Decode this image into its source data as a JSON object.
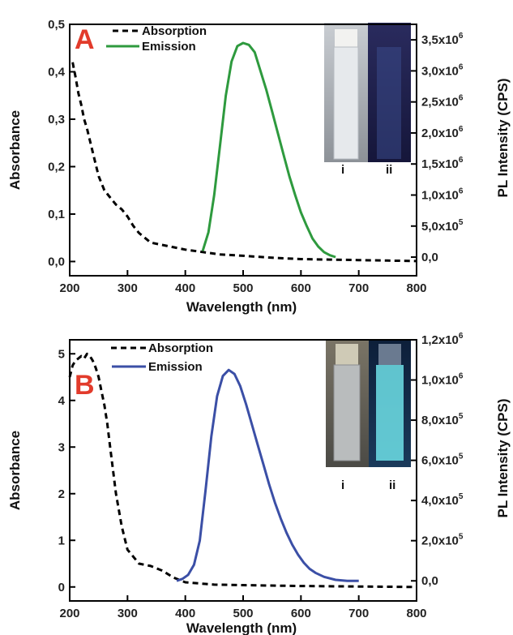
{
  "chart_data": [
    {
      "type": "line",
      "panel_label": "A",
      "xlabel": "Wavelength (nm)",
      "ylabel": "Absorbance",
      "y2label": "PL Intensity (CPS)",
      "xlim": [
        200,
        800
      ],
      "ylim": [
        -0.03,
        0.5
      ],
      "y2lim": [
        -300000.0,
        3750000.0
      ],
      "x_ticks": [
        "200",
        "300",
        "400",
        "500",
        "600",
        "700",
        "800"
      ],
      "y_ticks": [
        "0,0",
        "0,1",
        "0,2",
        "0,3",
        "0,4",
        "0,5"
      ],
      "y2_ticks": [
        {
          "base": "0,0",
          "exp": ""
        },
        {
          "base": "5,0x10",
          "exp": "5"
        },
        {
          "base": "1,0x10",
          "exp": "6"
        },
        {
          "base": "1,5x10",
          "exp": "6"
        },
        {
          "base": "2,0x10",
          "exp": "6"
        },
        {
          "base": "2,5x10",
          "exp": "6"
        },
        {
          "base": "3,0x10",
          "exp": "6"
        },
        {
          "base": "3,5x10",
          "exp": "6"
        }
      ],
      "legend_position": "top-left",
      "inset_labels": [
        "i",
        "ii"
      ],
      "series": [
        {
          "name": "Absorption",
          "axis": "left",
          "style": "dashed",
          "color": "#000000",
          "x": [
            205,
            210,
            215,
            220,
            225,
            230,
            240,
            250,
            260,
            270,
            280,
            290,
            300,
            310,
            320,
            330,
            340,
            360,
            380,
            400,
            430,
            460,
            500,
            550,
            600,
            650,
            700,
            750,
            800
          ],
          "y": [
            0.42,
            0.39,
            0.355,
            0.33,
            0.3,
            0.28,
            0.23,
            0.18,
            0.15,
            0.135,
            0.12,
            0.11,
            0.095,
            0.075,
            0.06,
            0.05,
            0.04,
            0.035,
            0.03,
            0.025,
            0.02,
            0.015,
            0.012,
            0.008,
            0.005,
            0.004,
            0.003,
            0.002,
            0.001
          ]
        },
        {
          "name": "Emission",
          "axis": "right",
          "style": "solid",
          "color": "#2e9a3e",
          "x": [
            430,
            440,
            450,
            460,
            470,
            480,
            490,
            500,
            510,
            520,
            530,
            540,
            550,
            560,
            570,
            580,
            590,
            600,
            610,
            620,
            630,
            640,
            650,
            660
          ],
          "y": [
            100000.0,
            400000.0,
            1000000.0,
            1800000.0,
            2600000.0,
            3150000.0,
            3400000.0,
            3450000.0,
            3420000.0,
            3300000.0,
            3000000.0,
            2700000.0,
            2350000.0,
            2000000.0,
            1650000.0,
            1300000.0,
            1000000.0,
            720000.0,
            500000.0,
            300000.0,
            170000.0,
            80000.0,
            30000.0,
            0.0
          ]
        }
      ]
    },
    {
      "type": "line",
      "panel_label": "B",
      "xlabel": "Wavelength (nm)",
      "ylabel": "Absorbance",
      "y2label": "PL Intensity (CPS)",
      "xlim": [
        200,
        800
      ],
      "ylim": [
        -0.3,
        5.3
      ],
      "y2lim": [
        -100000.0,
        1200000.0
      ],
      "x_ticks": [
        "200",
        "300",
        "400",
        "500",
        "600",
        "700",
        "800"
      ],
      "y_ticks": [
        "0",
        "1",
        "2",
        "3",
        "4",
        "5"
      ],
      "y2_ticks": [
        {
          "base": "0,0",
          "exp": ""
        },
        {
          "base": "2,0x10",
          "exp": "5"
        },
        {
          "base": "4,0x10",
          "exp": "5"
        },
        {
          "base": "6,0x10",
          "exp": "5"
        },
        {
          "base": "8,0x10",
          "exp": "5"
        },
        {
          "base": "1,0x10",
          "exp": "6"
        },
        {
          "base": "1,2x10",
          "exp": "6"
        }
      ],
      "legend_position": "top-left",
      "inset_labels": [
        "i",
        "ii"
      ],
      "series": [
        {
          "name": "Absorption",
          "axis": "left",
          "style": "dashed",
          "color": "#000000",
          "x": [
            200,
            205,
            210,
            215,
            220,
            225,
            230,
            235,
            240,
            245,
            250,
            255,
            260,
            265,
            270,
            275,
            280,
            290,
            300,
            320,
            340,
            360,
            380,
            400,
            450,
            500,
            600,
            700,
            800
          ],
          "y": [
            4.5,
            4.75,
            4.85,
            4.9,
            4.95,
            4.9,
            5.0,
            4.95,
            4.85,
            4.7,
            4.5,
            4.2,
            3.9,
            3.5,
            3.0,
            2.5,
            2.0,
            1.3,
            0.8,
            0.5,
            0.45,
            0.35,
            0.2,
            0.1,
            0.05,
            0.04,
            0.02,
            0.01,
            0.0
          ]
        },
        {
          "name": "Emission",
          "axis": "right",
          "style": "solid",
          "color": "#3b4fa6",
          "x": [
            385,
            395,
            405,
            415,
            425,
            435,
            445,
            455,
            465,
            475,
            485,
            495,
            505,
            515,
            525,
            535,
            545,
            555,
            565,
            575,
            585,
            595,
            605,
            615,
            625,
            640,
            660,
            680,
            700
          ],
          "y": [
            0.0,
            10000.0,
            30000.0,
            80000.0,
            200000.0,
            450000.0,
            720000.0,
            920000.0,
            1020000.0,
            1050000.0,
            1030000.0,
            970000.0,
            880000.0,
            780000.0,
            680000.0,
            580000.0,
            480000.0,
            390000.0,
            310000.0,
            240000.0,
            180000.0,
            130000.0,
            90000.0,
            60000.0,
            40000.0,
            20000.0,
            5000.0,
            0.0,
            0.0
          ]
        }
      ]
    }
  ]
}
